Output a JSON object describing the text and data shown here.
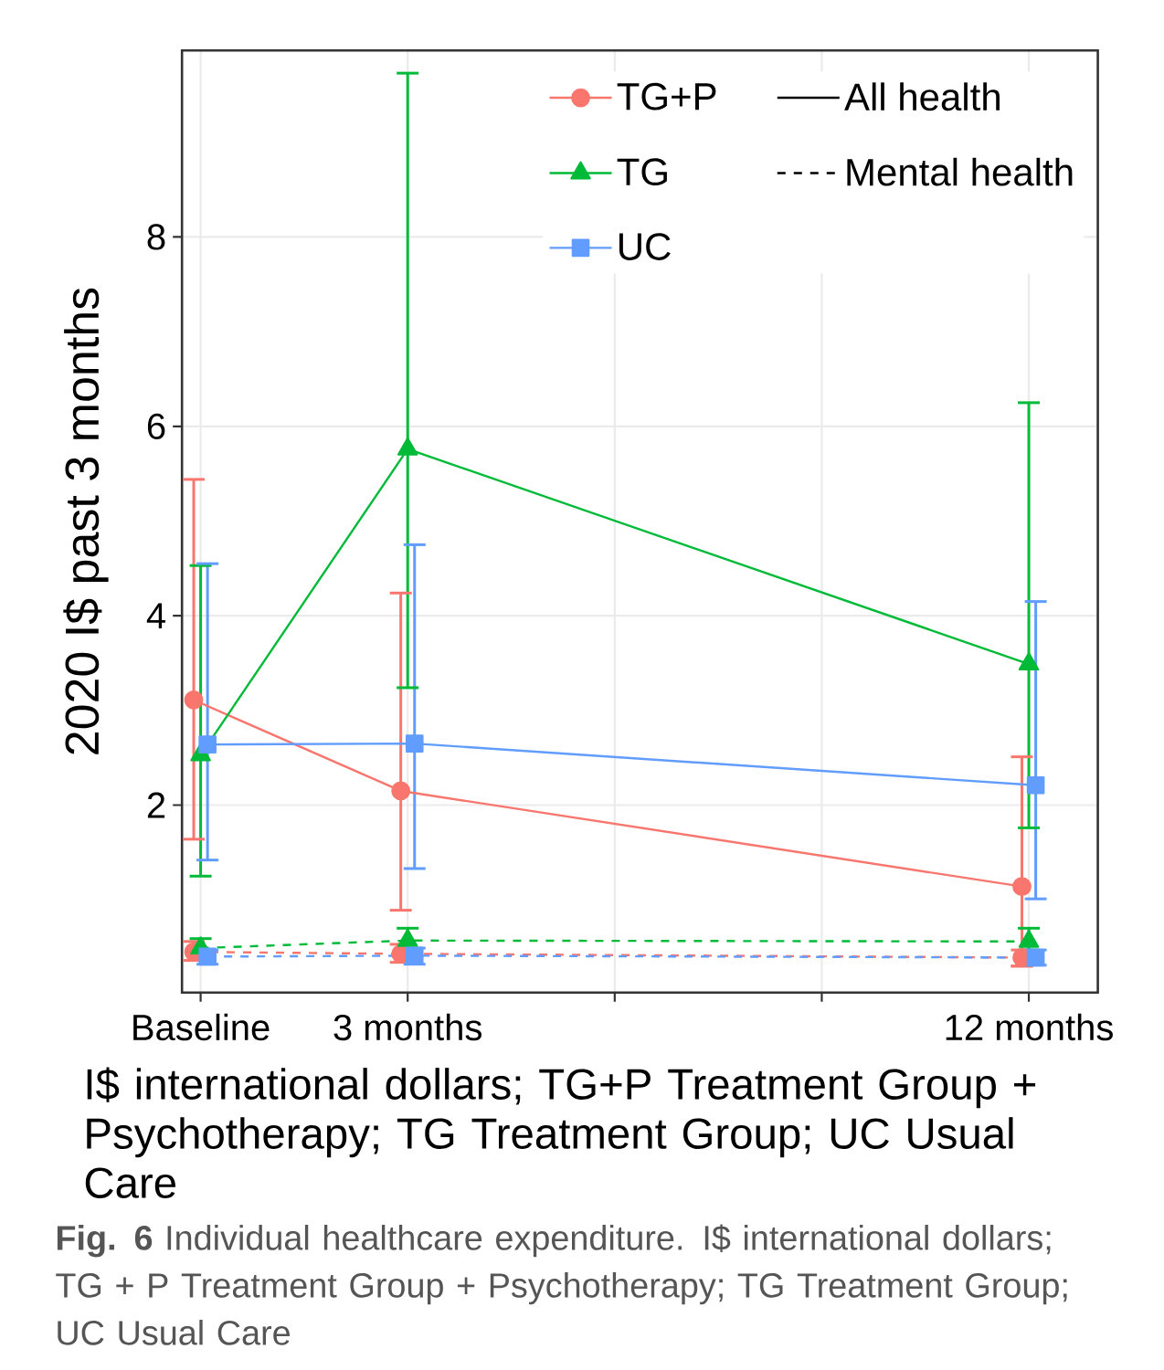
{
  "chart_data": {
    "type": "line",
    "ylabel": "2020 I$ past 3 months",
    "xlim": [
      -0.27,
      13
    ],
    "xticks": [
      {
        "value": 0,
        "label": "Baseline"
      },
      {
        "value": 3,
        "label": "3 months"
      },
      {
        "value": 6,
        "label": null
      },
      {
        "value": 9,
        "label": null
      },
      {
        "value": 12,
        "label": "12 months"
      }
    ],
    "ylim": [
      0.02,
      9.97
    ],
    "yticks": [
      2,
      4,
      6,
      8
    ],
    "grid": true,
    "legend": "top right",
    "series": [
      {
        "name": "TG+P",
        "color": "#f8766d",
        "marker": "circle",
        "line_style": "solid",
        "x": [
          -0.1,
          2.9,
          11.9
        ],
        "values": [
          3.11,
          2.15,
          1.14
        ],
        "errors": [
          [
            1.64,
            5.44
          ],
          [
            0.89,
            4.24
          ],
          [
            0.3,
            2.51
          ]
        ]
      },
      {
        "name": "TG",
        "color": "#00ba38",
        "marker": "triangle",
        "line_style": "solid",
        "x": [
          0,
          3,
          12
        ],
        "values": [
          2.53,
          5.76,
          3.49
        ],
        "errors": [
          [
            1.25,
            4.53
          ],
          [
            3.24,
            9.73
          ],
          [
            1.76,
            6.25
          ]
        ]
      },
      {
        "name": "UC",
        "color": "#619cff",
        "marker": "square",
        "line_style": "solid",
        "x": [
          0.1,
          3.1,
          12.1
        ],
        "values": [
          2.64,
          2.65,
          2.21
        ],
        "errors": [
          [
            1.42,
            4.55
          ],
          [
            1.33,
            4.75
          ],
          [
            1.01,
            4.15
          ]
        ]
      },
      {
        "color": "#f8766d",
        "marker": "circle",
        "line_style": "dashed",
        "x": [
          -0.1,
          2.9,
          11.9
        ],
        "values": [
          0.45,
          0.43,
          0.39
        ],
        "errors": [
          [
            0.36,
            0.56
          ],
          [
            0.34,
            0.53
          ],
          [
            0.3,
            0.47
          ]
        ]
      },
      {
        "color": "#00ba38",
        "marker": "triangle",
        "line_style": "dashed",
        "x": [
          0,
          3,
          12
        ],
        "values": [
          0.49,
          0.57,
          0.56
        ],
        "errors": [
          [
            0.4,
            0.59
          ],
          [
            0.48,
            0.7
          ],
          [
            0.47,
            0.7
          ]
        ]
      },
      {
        "color": "#619cff",
        "marker": "square",
        "line_style": "dashed",
        "x": [
          0.1,
          3.1,
          12.1
        ],
        "values": [
          0.4,
          0.41,
          0.39
        ],
        "errors": [
          [
            0.32,
            0.47
          ],
          [
            0.32,
            0.49
          ],
          [
            0.31,
            0.47
          ]
        ]
      }
    ],
    "annotations": [
      "All health",
      "Mental health",
      "I$ international dollars; TG+P Treatment Group + Psychotherapy; TG Treatment Group; UC Usual Care",
      "**Fig. 6** Individual healthcare expenditure. I$ international dollars; TG + P Treatment Group + Psychotherapy; TG Treatment Group; UC Usual Care"
    ]
  }
}
